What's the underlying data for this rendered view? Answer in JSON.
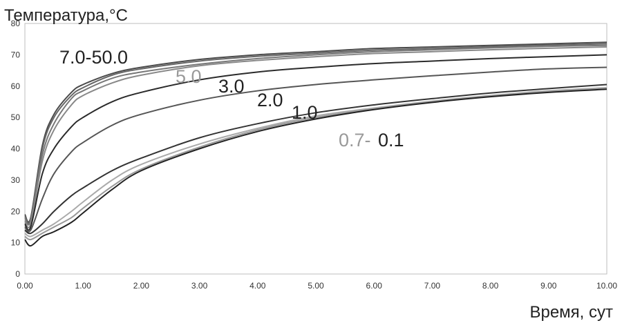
{
  "chart_data": {
    "type": "line",
    "ylabel": "Температура,°С",
    "xlabel": "Время, сут",
    "xlim": [
      0,
      10
    ],
    "ylim": [
      0,
      80
    ],
    "x_ticks": [
      "0.00",
      "1.00",
      "2.00",
      "3.00",
      "4.00",
      "5.00",
      "6.00",
      "7.00",
      "8.00",
      "9.00",
      "10.00"
    ],
    "y_ticks": [
      "0",
      "10",
      "20",
      "30",
      "40",
      "50",
      "60",
      "70",
      "80"
    ],
    "grid": false,
    "annotations": [
      {
        "text": "7.0-50.0",
        "color": "#222222"
      },
      {
        "text": "5.0",
        "color": "#999999"
      },
      {
        "text": "3.0",
        "color": "#222222"
      },
      {
        "text": "2.0",
        "color": "#222222"
      },
      {
        "text": "1.0",
        "color": "#222222"
      },
      {
        "text": "0.7-",
        "color": "#999999"
      },
      {
        "text": "0.1",
        "color": "#222222"
      }
    ],
    "series": [
      {
        "color": "#4a4a4a",
        "x": [
          0,
          0.1,
          0.3,
          0.5,
          0.8,
          1,
          1.5,
          2,
          3,
          4,
          5,
          6,
          7,
          8,
          9,
          10
        ],
        "y": [
          19,
          18,
          41,
          51,
          58,
          60.5,
          64,
          66,
          68.5,
          70,
          71,
          72,
          72.5,
          73,
          73.5,
          74
        ]
      },
      {
        "color": "#666666",
        "x": [
          0,
          0.1,
          0.3,
          0.5,
          0.8,
          1,
          1.5,
          2,
          3,
          4,
          5,
          6,
          7,
          8,
          9,
          10
        ],
        "y": [
          18.5,
          17.5,
          40,
          50,
          57,
          59.5,
          63.5,
          65.5,
          68,
          69.5,
          70.5,
          71.5,
          72,
          72.6,
          73.1,
          73.5
        ]
      },
      {
        "color": "#777777",
        "x": [
          0,
          0.1,
          0.3,
          0.5,
          0.8,
          1,
          1.5,
          2,
          3,
          4,
          5,
          6,
          7,
          8,
          9,
          10
        ],
        "y": [
          18,
          17,
          38,
          48,
          56,
          58.5,
          62.5,
          64.5,
          67,
          68.8,
          70,
          71,
          71.6,
          72.2,
          72.7,
          73
        ]
      },
      {
        "color": "#888888",
        "x": [
          0,
          0.1,
          0.3,
          0.5,
          0.8,
          1,
          1.5,
          2,
          3,
          4,
          5,
          6,
          7,
          8,
          9,
          10
        ],
        "y": [
          17,
          16,
          36,
          46,
          54,
          57,
          61,
          63.5,
          66.5,
          68.2,
          69.4,
          70.4,
          71,
          71.6,
          72.1,
          72.5
        ]
      },
      {
        "color": "#2a2a2a",
        "x": [
          0,
          0.1,
          0.3,
          0.5,
          0.8,
          1,
          1.5,
          2,
          3,
          4,
          5,
          6,
          7,
          8,
          9,
          10
        ],
        "y": [
          16,
          15,
          32,
          40,
          47,
          50,
          55,
          58,
          62,
          64.5,
          66,
          67.2,
          68,
          68.8,
          69.4,
          70
        ]
      },
      {
        "color": "#555555",
        "x": [
          0,
          0.1,
          0.3,
          0.5,
          0.8,
          1,
          1.5,
          2,
          3,
          4,
          5,
          6,
          7,
          8,
          9,
          10
        ],
        "y": [
          15,
          14,
          24,
          32,
          39,
          42,
          47.5,
          51,
          55.5,
          58.5,
          60.5,
          62,
          63.3,
          64.5,
          65.5,
          66
        ]
      },
      {
        "color": "#333333",
        "x": [
          0,
          0.1,
          0.3,
          0.5,
          0.8,
          1,
          1.5,
          2,
          3,
          4,
          5,
          6,
          7,
          8,
          9,
          10
        ],
        "y": [
          14,
          13,
          16,
          20,
          25,
          27.5,
          33,
          37,
          43.5,
          48,
          51.5,
          54,
          56,
          57.8,
          59.2,
          60.5
        ]
      },
      {
        "color": "#aaaaaa",
        "x": [
          0,
          0.1,
          0.3,
          0.5,
          0.8,
          1,
          1.5,
          2,
          3,
          4,
          5,
          6,
          7,
          8,
          9,
          10
        ],
        "y": [
          13,
          12,
          14,
          16,
          20,
          23,
          30,
          35,
          41.5,
          46.5,
          50.5,
          53,
          55.2,
          57,
          58.5,
          59.5
        ]
      },
      {
        "color": "#999999",
        "x": [
          0,
          0.1,
          0.3,
          0.5,
          0.8,
          1,
          1.5,
          2,
          3,
          4,
          5,
          6,
          7,
          8,
          9,
          10
        ],
        "y": [
          12,
          11,
          13,
          15,
          18,
          21,
          28,
          33.5,
          40.5,
          46,
          50,
          52.7,
          55,
          56.8,
          58.2,
          59.2
        ]
      },
      {
        "color": "#222222",
        "x": [
          0,
          0.1,
          0.3,
          0.5,
          0.8,
          1,
          1.5,
          2,
          3,
          4,
          5,
          6,
          7,
          8,
          9,
          10
        ],
        "y": [
          11,
          9,
          12,
          13.5,
          16.5,
          19.5,
          27,
          33,
          40,
          45.5,
          49.5,
          52.5,
          54.8,
          56.6,
          58,
          59
        ]
      }
    ]
  }
}
